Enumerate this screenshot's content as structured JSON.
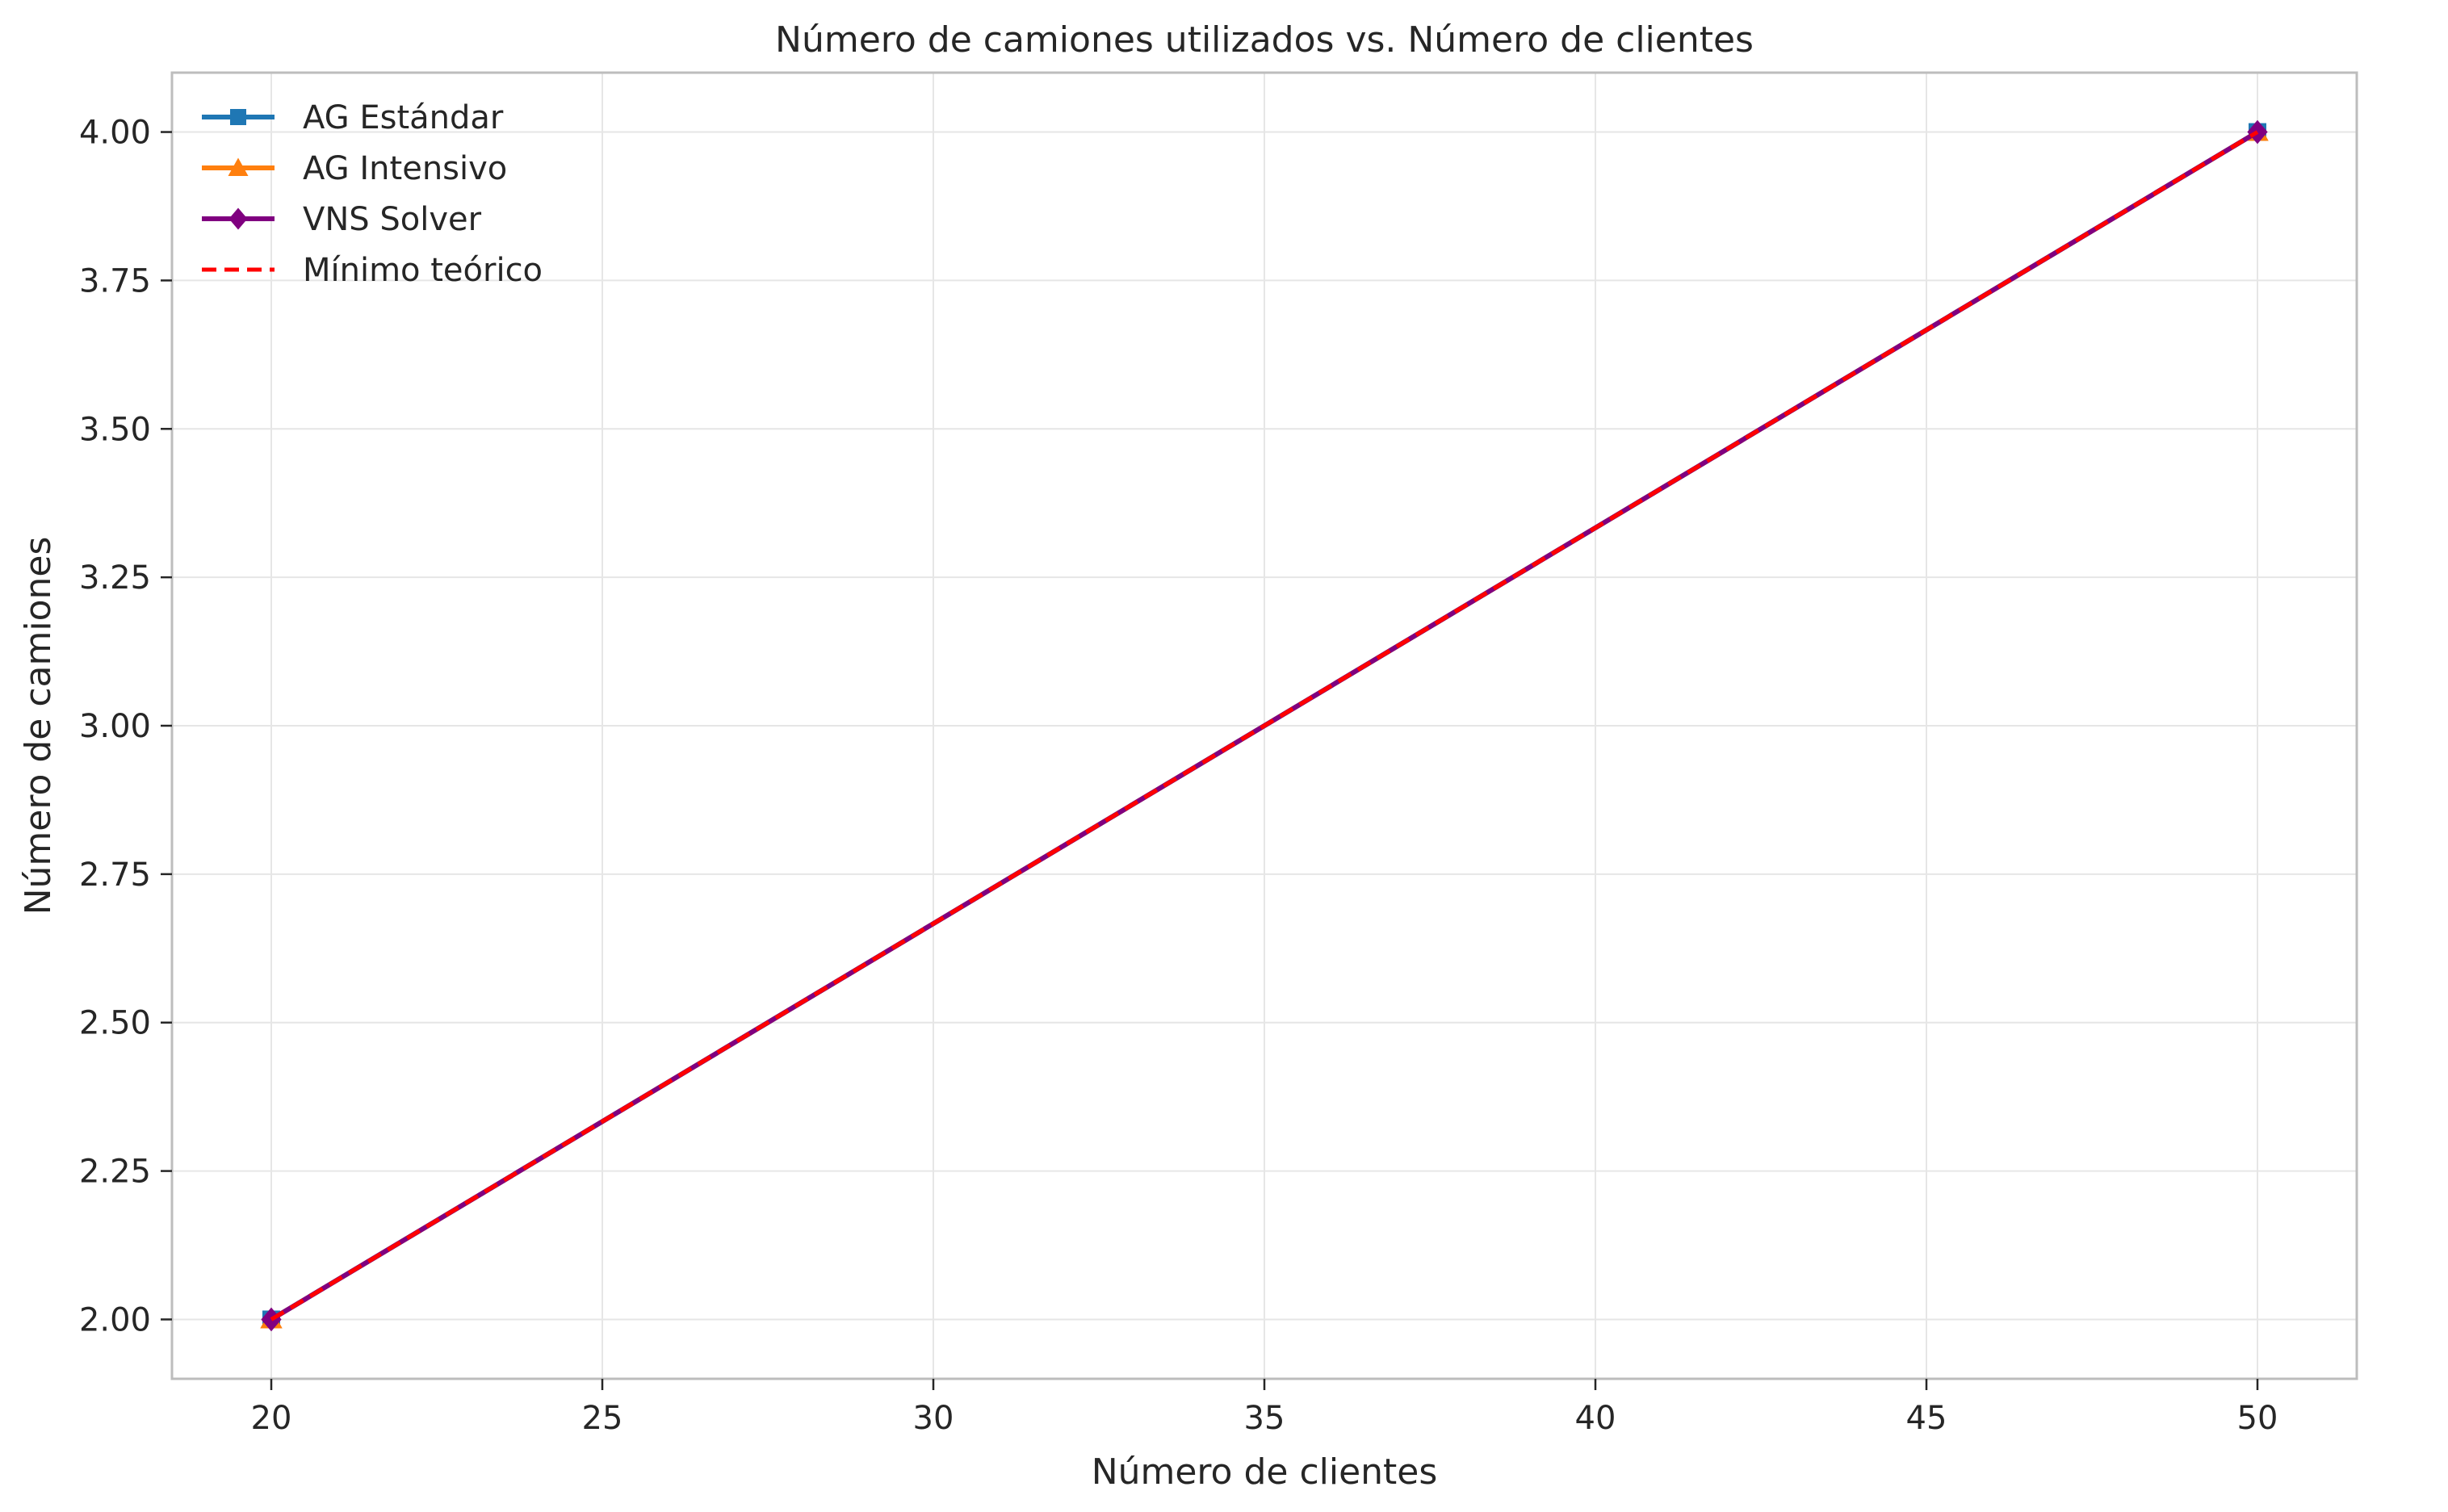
{
  "chart_data": {
    "type": "line",
    "title": "Número de camiones utilizados vs. Número de clientes",
    "xlabel": "Número de clientes",
    "ylabel": "Número de camiones",
    "xlim": [
      18.5,
      51.5
    ],
    "ylim": [
      1.9,
      4.1
    ],
    "xticks": [
      20,
      25,
      30,
      35,
      40,
      45,
      50
    ],
    "xtick_labels": [
      "20",
      "25",
      "30",
      "35",
      "40",
      "45",
      "50"
    ],
    "yticks": [
      2.0,
      2.25,
      2.5,
      2.75,
      3.0,
      3.25,
      3.5,
      3.75,
      4.0
    ],
    "ytick_labels": [
      "2.00",
      "2.25",
      "2.50",
      "2.75",
      "3.00",
      "3.25",
      "3.50",
      "3.75",
      "4.00"
    ],
    "grid": true,
    "legend_position": "top-left",
    "series": [
      {
        "name": "AG Estándar",
        "x": [
          20,
          50
        ],
        "y": [
          2,
          4
        ],
        "color": "#1f77b4",
        "marker": "square",
        "linestyle": "solid"
      },
      {
        "name": "AG Intensivo",
        "x": [
          20,
          50
        ],
        "y": [
          2,
          4
        ],
        "color": "#ff7f0e",
        "marker": "triangle",
        "linestyle": "solid"
      },
      {
        "name": "VNS Solver",
        "x": [
          20,
          50
        ],
        "y": [
          2,
          4
        ],
        "color": "#800080",
        "marker": "diamond",
        "linestyle": "solid"
      },
      {
        "name": "Mínimo teórico",
        "x": [
          20,
          50
        ],
        "y": [
          2,
          4
        ],
        "color": "#ff0000",
        "marker": "none",
        "linestyle": "dashed"
      }
    ]
  }
}
